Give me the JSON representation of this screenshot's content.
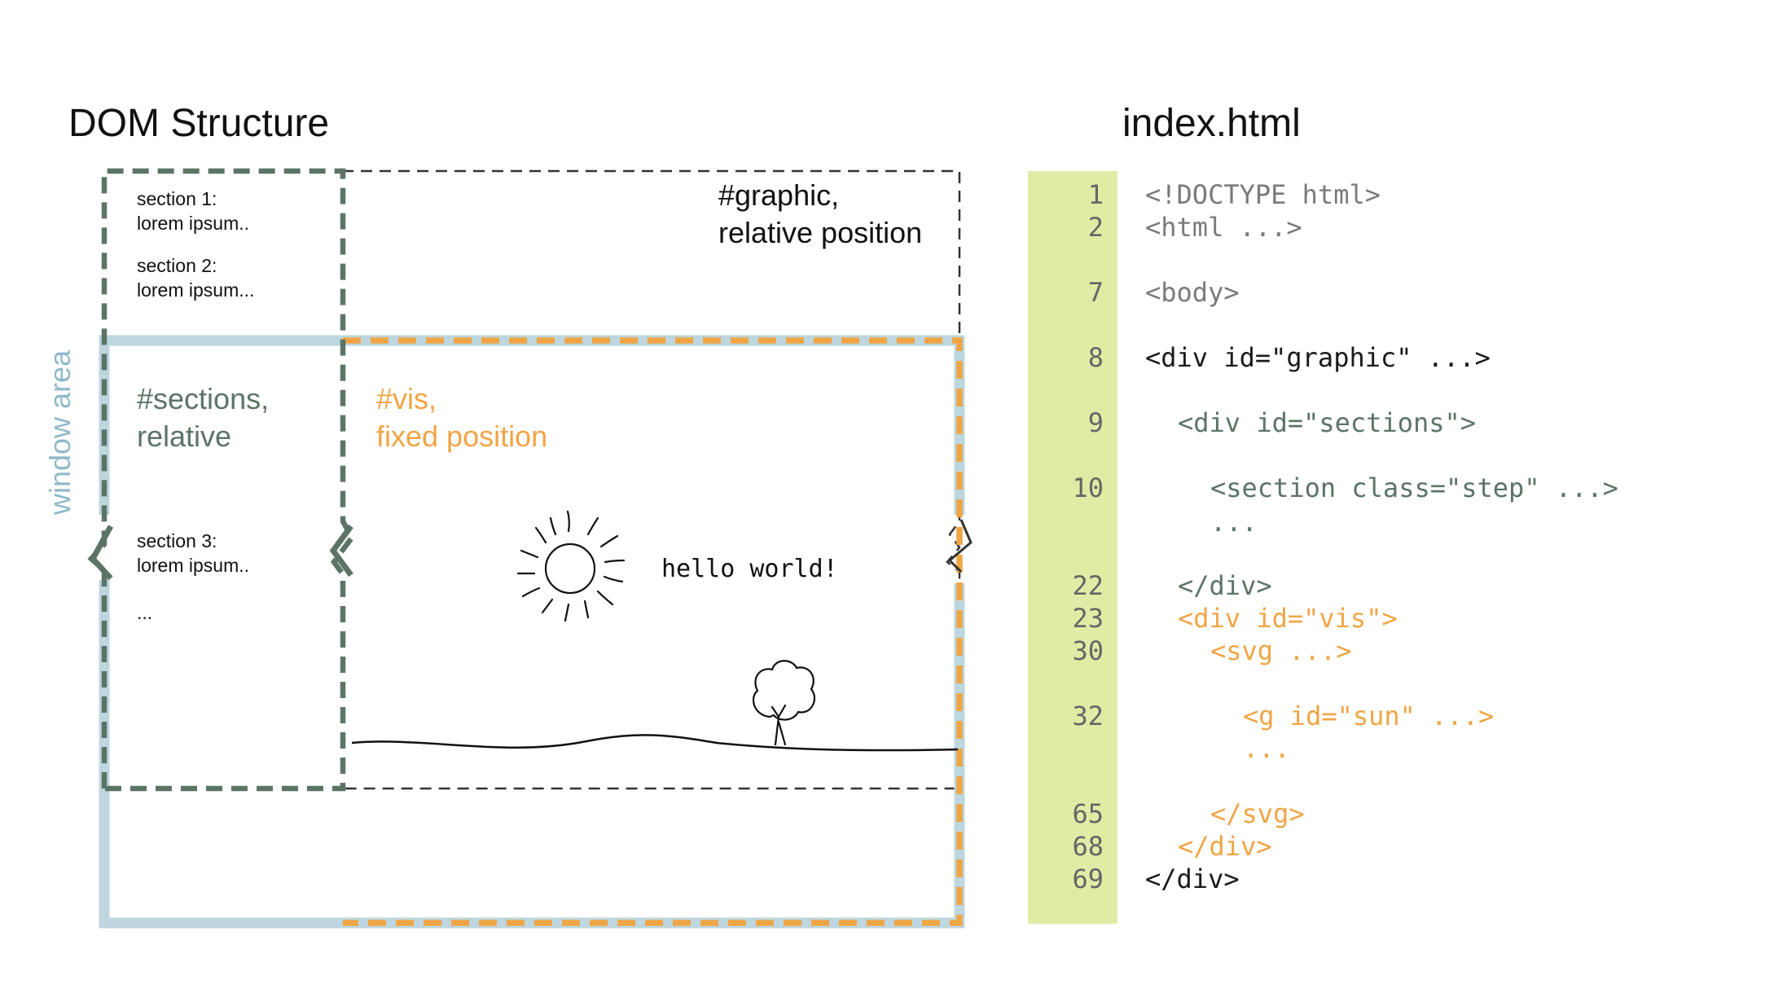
{
  "headings": {
    "dom_structure": "DOM Structure",
    "file": "index.html"
  },
  "dom": {
    "graphic_label": [
      "#graphic,",
      "relative position"
    ],
    "sections_label": [
      "#sections,",
      "relative"
    ],
    "vis_label": [
      "#vis,",
      "fixed position"
    ],
    "window_label": "window area",
    "section1": [
      "section 1:",
      "lorem ipsum.."
    ],
    "section2": [
      "section 2:",
      "lorem ipsum..."
    ],
    "section3": [
      "section 3:",
      "lorem ipsum.."
    ],
    "ellipsis": "...",
    "hello": "hello world!"
  },
  "code": {
    "lines": [
      {
        "num": "1",
        "text": "<!DOCTYPE html>"
      },
      {
        "num": "2",
        "text": "<html ...>"
      },
      {
        "num": "7",
        "text": "<body>"
      },
      {
        "num": "8",
        "text": "<div id=\"graphic\" ...>"
      },
      {
        "num": "9",
        "text": "<div id=\"sections\">"
      },
      {
        "num": "10",
        "text": "<section class=\"step\" ...>"
      },
      {
        "num": "",
        "text": "..."
      },
      {
        "num": "22",
        "text": "</div>"
      },
      {
        "num": "23",
        "text": "<div id=\"vis\">"
      },
      {
        "num": "30",
        "text": "<svg ...>"
      },
      {
        "num": "32",
        "text": "<g id=\"sun\" ...>"
      },
      {
        "num": "",
        "text": "..."
      },
      {
        "num": "65",
        "text": "</svg>"
      },
      {
        "num": "68",
        "text": "</div>"
      },
      {
        "num": "69",
        "text": "</div>"
      }
    ]
  },
  "colors": {
    "sections": "#5b7466",
    "vis": "#f0a545",
    "window": "#bdd6df",
    "graphic": "#333333",
    "gutter": "#e2eba6",
    "code_gray": "#7a7a7a",
    "code_dark": "#1a1a1a"
  }
}
